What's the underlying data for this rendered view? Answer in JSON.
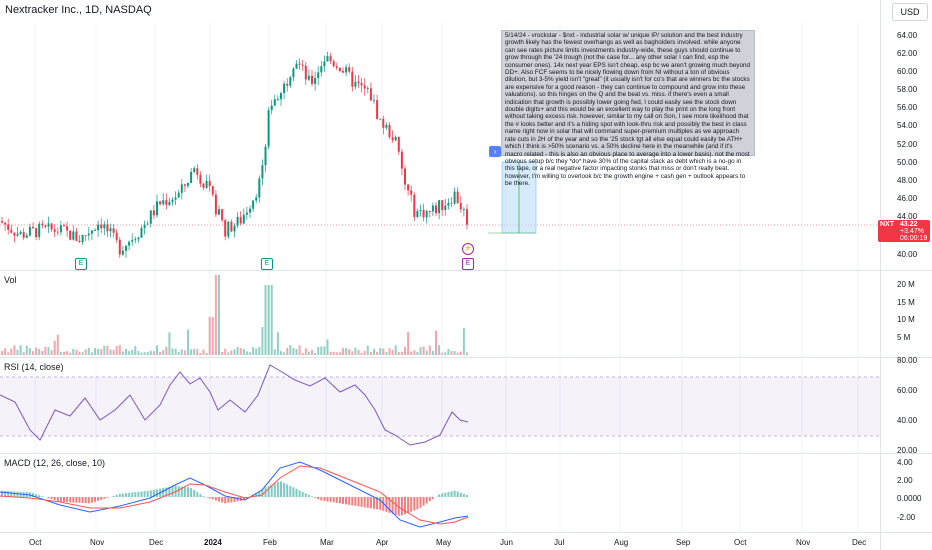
{
  "header": {
    "title": "Nextracker Inc., 1D, NASDAQ",
    "currency": "USD"
  },
  "price_axis": [
    "64.00",
    "62.00",
    "60.00",
    "58.00",
    "56.00",
    "54.00",
    "52.00",
    "50.00",
    "48.00",
    "46.00",
    "44.00",
    "40.00"
  ],
  "price_tag": {
    "symbol": "NXT",
    "price": "43.22",
    "change": "+3.47%",
    "timer": "06:00:19"
  },
  "volume": {
    "label": "Vol",
    "axis": [
      "20 M",
      "15 M",
      "10 M",
      "5 M"
    ]
  },
  "rsi": {
    "label": "RSI (14, close)",
    "axis": [
      "80.00",
      "60.00",
      "40.00",
      "20.00"
    ]
  },
  "macd": {
    "label": "MACD (12, 26, close, 10)",
    "axis": [
      "4.00",
      "2.00",
      "0.0000",
      "-2.00"
    ]
  },
  "time_axis": [
    "Oct",
    "Nov",
    "Dec",
    "2024",
    "Feb",
    "Mar",
    "Apr",
    "May",
    "Jun",
    "Jul",
    "Aug",
    "Sep",
    "Oct",
    "Nov",
    "Dec"
  ],
  "event_markers": {
    "earnings": "E",
    "flash": "⚡"
  },
  "note": {
    "text": "5/14/24 - vrockstar - $nxt - industrial solar w/ unique IP/ solution and the best industry growth likely has the fewest overhangs as well as bagholders involved. while anyone can see rates picture limits investments industry-wide, these guys should continue to grow through the '24 trough (not the case for... any other solar I can find, esp the consumer ones). 14x next year EPS isn't cheap, esp bc we aren't growing much beyond DD+. Also FCF seems to be nicely flowing down from NI without a ton of obvious dilution, but 3-5% yield isn't \"great\" (it usually isn't for co's that are winners bc the stocks are expensive for a good reason - they can continue to compound and grow into these valuations). so this hinges on the Q and the beat vs. miss. if there's even a small indication that growth is possibly lower going fwd, I could easily see the stock down double digits+ and this would be an excellent way to play the print on the long front without taking excess risk. however, similar to my call on Son, I see more likelihood that the # looks better and it's a hiding spot with look-thru risk and possibly the best in class name right now in solar that will command super-premium multiples as we approach rate cuts in 2H of the year and so the '25 stock tgt all else equal could easily be ATH+ which I think is >50% scenario vs. a 50% decline here in the meanwhile (and if it's macro related - this is also an obvious place to average into a lower basis). not the most obvious setup b/c they *do* have 30% of the capital stack as debt which is a no-go in this tape, or a real negative factor impacting stonks that miss or don't really beat. however, I'm willing to overlook b/c the growth engine + cash gen + outlook appears to be there."
  },
  "colors": {
    "up": "#089981",
    "down": "#f23645",
    "rsi": "#7e57c2",
    "macd": "#2962ff",
    "signal": "#ff5252"
  }
}
